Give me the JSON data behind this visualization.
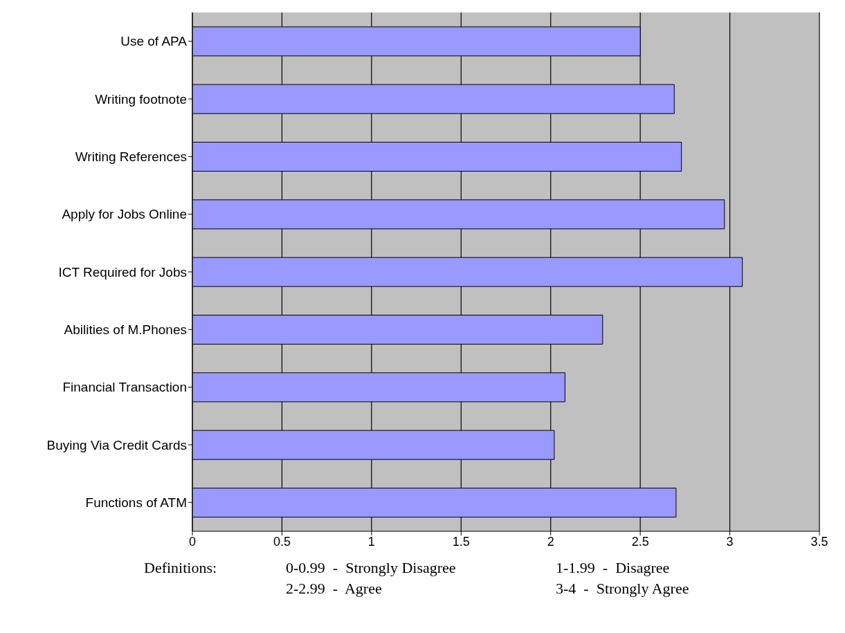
{
  "chart_data": {
    "type": "bar",
    "orientation": "horizontal",
    "categories": [
      "Use of APA",
      "Writing footnote",
      "Writing References",
      "Apply for Jobs Online",
      "ICT Required for Jobs",
      "Abilities of  M.Phones",
      "Financial Transaction",
      "Buying Via Credit Cards",
      "Functions of ATM"
    ],
    "values": [
      2.5,
      2.69,
      2.73,
      2.97,
      3.07,
      2.29,
      2.08,
      2.02,
      2.7
    ],
    "color": "#9999ff",
    "xlim": [
      0,
      3.5
    ],
    "xticks": [
      0,
      0.5,
      1,
      1.5,
      2,
      2.5,
      3,
      3.5
    ],
    "grid": "x",
    "annotations": [
      "Definitions:",
      "0-0.99  -  Strongly Disagree",
      "1-1.99  -  Disagree",
      "2-2.99  -  Agree",
      "3-4  -  Strongly Agree"
    ]
  }
}
